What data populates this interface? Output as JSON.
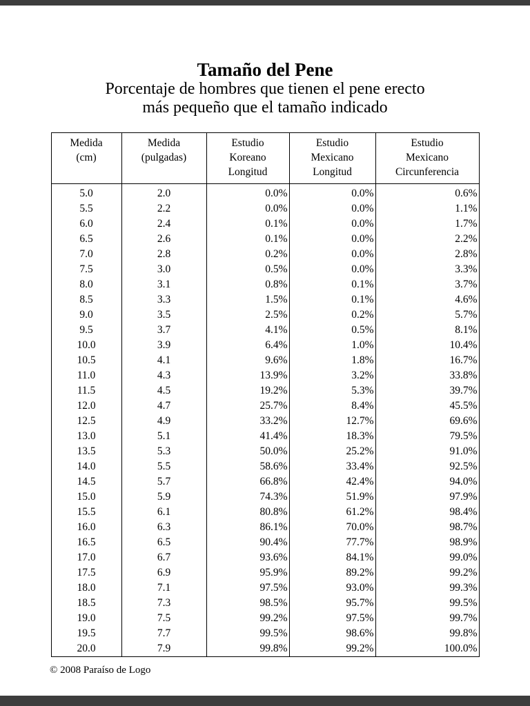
{
  "page": {
    "title": "Tamaño del Pene",
    "subtitle_line1": "Porcentaje de hombres que tienen el pene erecto",
    "subtitle_line2": "más pequeño que el tamaño indicado",
    "footer": "© 2008 Paraíso de Logo"
  },
  "table": {
    "headers": [
      {
        "lines": [
          "Medida",
          "(cm)"
        ]
      },
      {
        "lines": [
          "Medida",
          "(pulgadas)"
        ]
      },
      {
        "lines": [
          "Estudio",
          "Koreano",
          "Longitud"
        ]
      },
      {
        "lines": [
          "Estudio",
          "Mexicano",
          "Longitud"
        ]
      },
      {
        "lines": [
          "Estudio",
          "Mexicano",
          "Circunferencia"
        ]
      }
    ],
    "rows": [
      [
        "5.0",
        "2.0",
        "0.0%",
        "0.0%",
        "0.6%"
      ],
      [
        "5.5",
        "2.2",
        "0.0%",
        "0.0%",
        "1.1%"
      ],
      [
        "6.0",
        "2.4",
        "0.1%",
        "0.0%",
        "1.7%"
      ],
      [
        "6.5",
        "2.6",
        "0.1%",
        "0.0%",
        "2.2%"
      ],
      [
        "7.0",
        "2.8",
        "0.2%",
        "0.0%",
        "2.8%"
      ],
      [
        "7.5",
        "3.0",
        "0.5%",
        "0.0%",
        "3.3%"
      ],
      [
        "8.0",
        "3.1",
        "0.8%",
        "0.1%",
        "3.7%"
      ],
      [
        "8.5",
        "3.3",
        "1.5%",
        "0.1%",
        "4.6%"
      ],
      [
        "9.0",
        "3.5",
        "2.5%",
        "0.2%",
        "5.7%"
      ],
      [
        "9.5",
        "3.7",
        "4.1%",
        "0.5%",
        "8.1%"
      ],
      [
        "10.0",
        "3.9",
        "6.4%",
        "1.0%",
        "10.4%"
      ],
      [
        "10.5",
        "4.1",
        "9.6%",
        "1.8%",
        "16.7%"
      ],
      [
        "11.0",
        "4.3",
        "13.9%",
        "3.2%",
        "33.8%"
      ],
      [
        "11.5",
        "4.5",
        "19.2%",
        "5.3%",
        "39.7%"
      ],
      [
        "12.0",
        "4.7",
        "25.7%",
        "8.4%",
        "45.5%"
      ],
      [
        "12.5",
        "4.9",
        "33.2%",
        "12.7%",
        "69.6%"
      ],
      [
        "13.0",
        "5.1",
        "41.4%",
        "18.3%",
        "79.5%"
      ],
      [
        "13.5",
        "5.3",
        "50.0%",
        "25.2%",
        "91.0%"
      ],
      [
        "14.0",
        "5.5",
        "58.6%",
        "33.4%",
        "92.5%"
      ],
      [
        "14.5",
        "5.7",
        "66.8%",
        "42.4%",
        "94.0%"
      ],
      [
        "15.0",
        "5.9",
        "74.3%",
        "51.9%",
        "97.9%"
      ],
      [
        "15.5",
        "6.1",
        "80.8%",
        "61.2%",
        "98.4%"
      ],
      [
        "16.0",
        "6.3",
        "86.1%",
        "70.0%",
        "98.7%"
      ],
      [
        "16.5",
        "6.5",
        "90.4%",
        "77.7%",
        "98.9%"
      ],
      [
        "17.0",
        "6.7",
        "93.6%",
        "84.1%",
        "99.0%"
      ],
      [
        "17.5",
        "6.9",
        "95.9%",
        "89.2%",
        "99.2%"
      ],
      [
        "18.0",
        "7.1",
        "97.5%",
        "93.0%",
        "99.3%"
      ],
      [
        "18.5",
        "7.3",
        "98.5%",
        "95.7%",
        "99.5%"
      ],
      [
        "19.0",
        "7.5",
        "99.2%",
        "97.5%",
        "99.7%"
      ],
      [
        "19.5",
        "7.7",
        "99.5%",
        "98.6%",
        "99.8%"
      ],
      [
        "20.0",
        "7.9",
        "99.8%",
        "99.2%",
        "100.0%"
      ]
    ]
  },
  "colors": {
    "viewer_chrome": "#3d3d3d",
    "page_background": "#ffffff",
    "text": "#000000",
    "table_border": "#000000"
  }
}
